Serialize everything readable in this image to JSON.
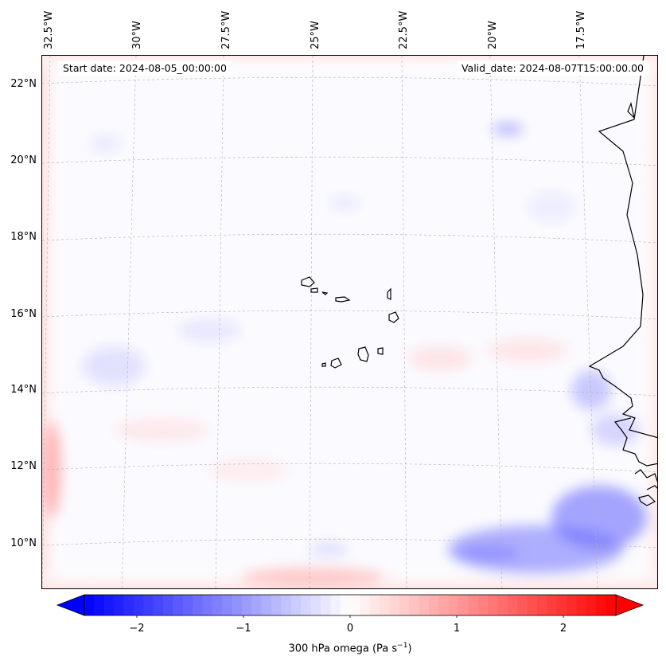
{
  "info": {
    "start_date": "Start date: 2024-08-05_00:00:00",
    "valid_date": "Valid_date: 2024-08-07T15:00:00.00"
  },
  "map": {
    "lat_labels": [
      "22°N",
      "20°N",
      "18°N",
      "16°N",
      "14°N",
      "12°N",
      "10°N"
    ],
    "lon_labels": [
      "32.5°W",
      "30°W",
      "27.5°W",
      "25°W",
      "22.5°W",
      "20°W",
      "17.5°W"
    ],
    "colors": {
      "coast": "#000000",
      "grid": "#b0b0b0"
    }
  },
  "colorbar": {
    "ticks": [
      "−2",
      "−1",
      "0",
      "1",
      "2"
    ],
    "label_main": "300 hPa omega (Pa s",
    "label_sup": "−1",
    "label_end": ")",
    "vmin": -2.7,
    "vmax": 2.7,
    "colormap": "bwr",
    "colors": {
      "min": "#0000ff",
      "mid": "#ffffff",
      "max": "#ff0000"
    }
  }
}
